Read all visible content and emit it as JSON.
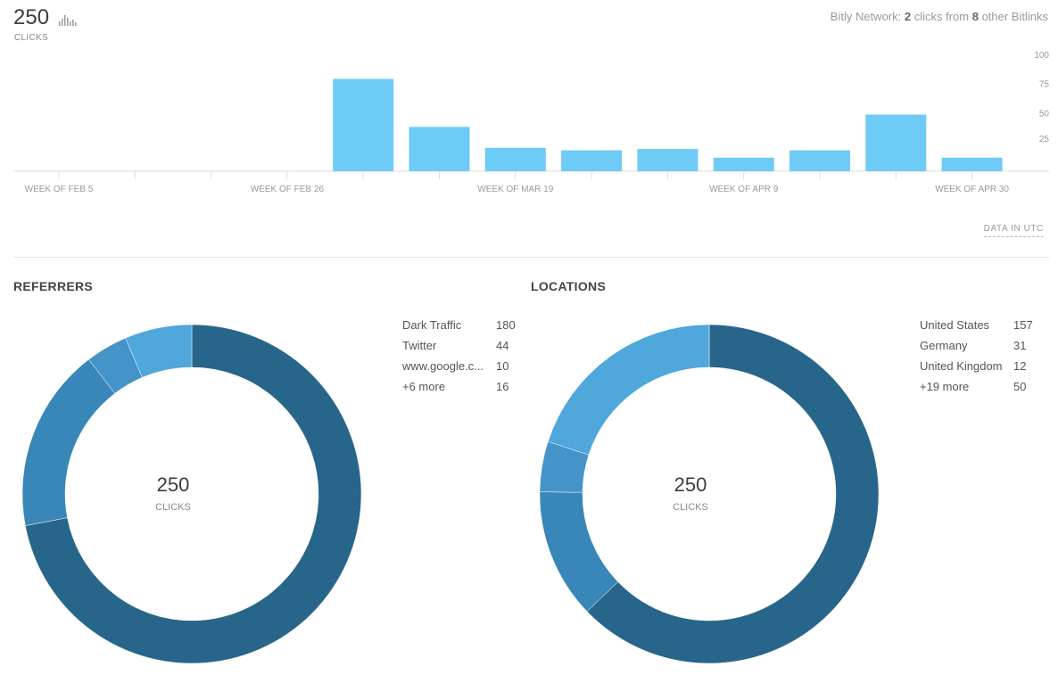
{
  "header": {
    "total_clicks": "250",
    "total_label": "CLICKS",
    "network_prefix": "Bitly Network: ",
    "network_clicks": "2",
    "network_middle": " clicks from ",
    "network_links": "8",
    "network_suffix": " other Bitlinks",
    "utc_label": "DATA IN UTC",
    "spark_icon": "bar-chart-icon"
  },
  "chart_data": {
    "type": "bar",
    "weeks": 13,
    "categories": [
      "WEEK OF FEB 5",
      "",
      "",
      "WEEK OF FEB 26",
      "",
      "",
      "WEEK OF MAR 19",
      "",
      "",
      "WEEK OF APR 9",
      "",
      "",
      "WEEK OF APR 30"
    ],
    "values": [
      0,
      0,
      0,
      0,
      75,
      36,
      19,
      17,
      18,
      11,
      17,
      46,
      11
    ],
    "yticks": [
      "25",
      "50",
      "75",
      "100"
    ],
    "ylim": [
      0,
      100
    ],
    "color": "#6ecbf5"
  },
  "referrers": {
    "title": "REFERRERS",
    "center_value": "250",
    "center_label": "CLICKS",
    "items": [
      {
        "name": "Dark Traffic",
        "value": "180",
        "n": 180,
        "color": "#28658a"
      },
      {
        "name": "Twitter",
        "value": "44",
        "n": 44,
        "color": "#3986b8"
      },
      {
        "name": "www.google.c...",
        "value": "10",
        "n": 10,
        "color": "#4493c9"
      },
      {
        "name": "+6 more",
        "value": "16",
        "n": 16,
        "color": "#4fa7dc"
      }
    ]
  },
  "locations": {
    "title": "LOCATIONS",
    "center_value": "250",
    "center_label": "CLICKS",
    "items": [
      {
        "name": "United States",
        "value": "157",
        "n": 157,
        "color": "#28658a"
      },
      {
        "name": "Germany",
        "value": "31",
        "n": 31,
        "color": "#3986b8"
      },
      {
        "name": "United Kingdom",
        "value": "12",
        "n": 12,
        "color": "#4493c9"
      },
      {
        "name": "+19 more",
        "value": "50",
        "n": 50,
        "color": "#4fa7dc"
      }
    ]
  }
}
